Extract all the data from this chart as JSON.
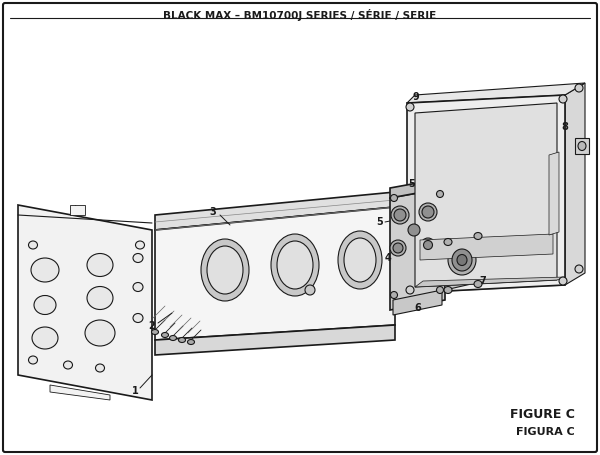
{
  "title": "BLACK MAX – BM10700J SERIES / SÉRIE / SERIE",
  "figure_label": "FIGURE C",
  "figura_label": "FIGURA C",
  "bg_color": "#ffffff",
  "line_color": "#1a1a1a",
  "text_color": "#1a1a1a",
  "title_fontsize": 7.5,
  "figure_label_fontsize": 9
}
